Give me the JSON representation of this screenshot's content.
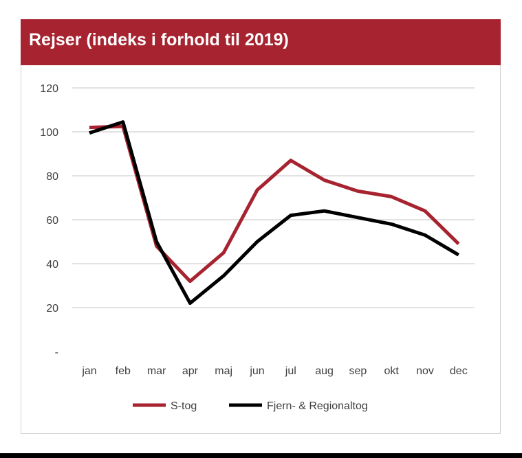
{
  "chart_data": {
    "type": "line",
    "title": "Rejser (indeks i forhold til 2019)",
    "categories": [
      "jan",
      "feb",
      "mar",
      "apr",
      "maj",
      "jun",
      "jul",
      "aug",
      "sep",
      "okt",
      "nov",
      "dec"
    ],
    "y_tick_labels": [
      "-",
      "20",
      "40",
      "60",
      "80",
      "100",
      "120"
    ],
    "ylim": [
      0,
      120
    ],
    "grid": true,
    "legend_position": "bottom",
    "series": [
      {
        "name": "S-tog",
        "color": "#a6232f",
        "values": [
          102,
          102.5,
          48,
          32,
          45,
          73.5,
          87,
          78,
          73,
          70.5,
          64,
          49
        ]
      },
      {
        "name": "Fjern- & Regionaltog",
        "color": "#000000",
        "values": [
          99.5,
          104.5,
          50,
          22,
          34.5,
          50,
          62,
          64,
          61,
          58,
          53,
          44
        ]
      }
    ]
  }
}
